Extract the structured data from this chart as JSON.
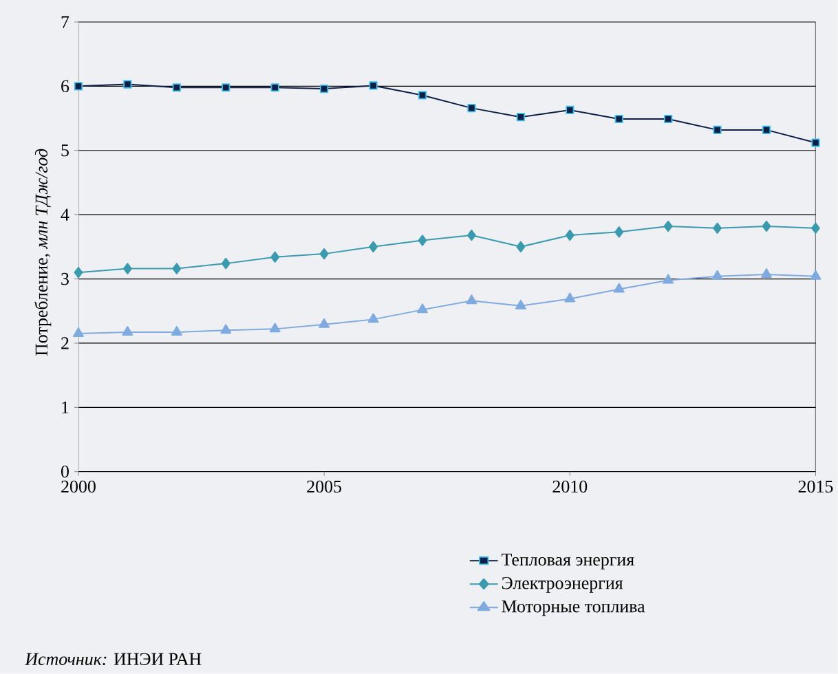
{
  "chart_data": {
    "type": "line",
    "ylabel": "Потребление, *млн ТДж/год*",
    "x": [
      2000,
      2001,
      2002,
      2003,
      2004,
      2005,
      2006,
      2007,
      2008,
      2009,
      2010,
      2011,
      2012,
      2013,
      2014,
      2015
    ],
    "series": [
      {
        "name": "Тепловая энергия",
        "color": "#0d1f45",
        "marker": "square",
        "values": [
          6.0,
          6.03,
          5.98,
          5.98,
          5.98,
          5.96,
          6.01,
          5.86,
          5.66,
          5.52,
          5.63,
          5.49,
          5.49,
          5.32,
          5.32,
          5.12
        ]
      },
      {
        "name": "Электроэнергия",
        "color": "#3a9aae",
        "marker": "diamond",
        "values": [
          3.1,
          3.16,
          3.16,
          3.24,
          3.34,
          3.39,
          3.5,
          3.6,
          3.68,
          3.5,
          3.68,
          3.73,
          3.82,
          3.79,
          3.82,
          3.79
        ]
      },
      {
        "name": "Моторные топлива",
        "color": "#7eaadf",
        "marker": "triangle",
        "values": [
          2.15,
          2.17,
          2.17,
          2.2,
          2.22,
          2.29,
          2.37,
          2.52,
          2.66,
          2.58,
          2.69,
          2.84,
          2.98,
          3.04,
          3.07,
          3.04
        ]
      }
    ],
    "xlim": [
      2000,
      2015
    ],
    "xticks": [
      2000,
      2005,
      2010,
      2015
    ],
    "ylim": [
      0,
      7
    ],
    "yticks": [
      0,
      1,
      2,
      3,
      4,
      5,
      6,
      7
    ],
    "grid": "y",
    "legend": "bottom right",
    "line_style": "solid",
    "annotations": [
      "*Источник:* ИНЭИ РАН"
    ]
  }
}
